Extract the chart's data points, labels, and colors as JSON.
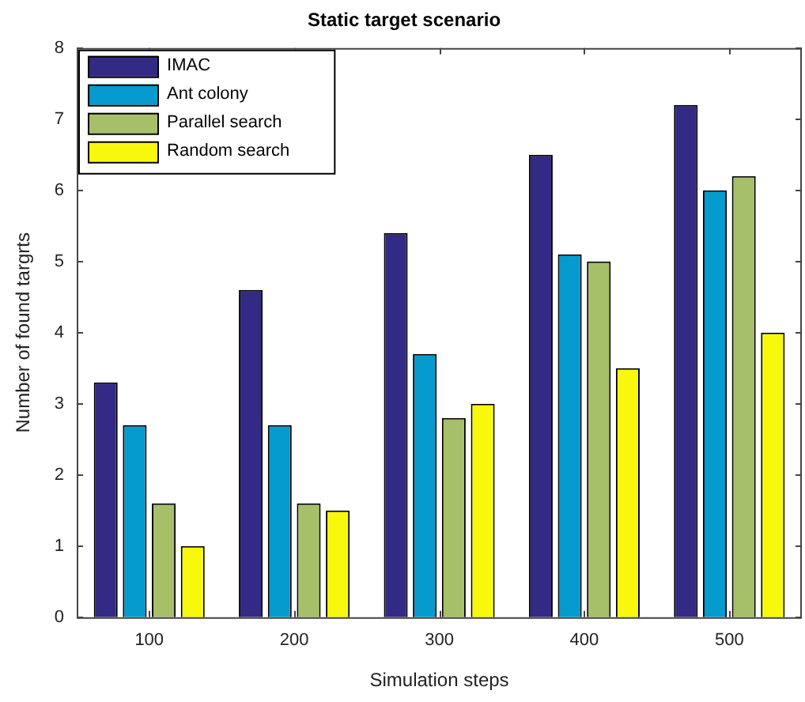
{
  "chart_data": {
    "type": "bar",
    "title": "Static target scenario",
    "xlabel": "Simulation steps",
    "ylabel": "Number of found targrts",
    "categories": [
      "100",
      "200",
      "300",
      "400",
      "500"
    ],
    "series": [
      {
        "name": "IMAC",
        "color": "#332a85",
        "values": [
          3.3,
          4.6,
          5.4,
          6.5,
          7.2
        ]
      },
      {
        "name": "Ant colony",
        "color": "#069bce",
        "values": [
          2.7,
          2.7,
          3.7,
          5.1,
          6.0
        ]
      },
      {
        "name": "Parallel search",
        "color": "#a6bf69",
        "values": [
          1.6,
          1.6,
          2.8,
          5.0,
          6.2
        ]
      },
      {
        "name": "Random search",
        "color": "#f8f80c",
        "values": [
          1.0,
          1.5,
          3.0,
          3.5,
          4.0
        ]
      }
    ],
    "ylim": [
      0,
      8
    ],
    "yticks": [
      0,
      1,
      2,
      3,
      4,
      5,
      6,
      7,
      8
    ],
    "grid": false,
    "legend": "top left"
  }
}
